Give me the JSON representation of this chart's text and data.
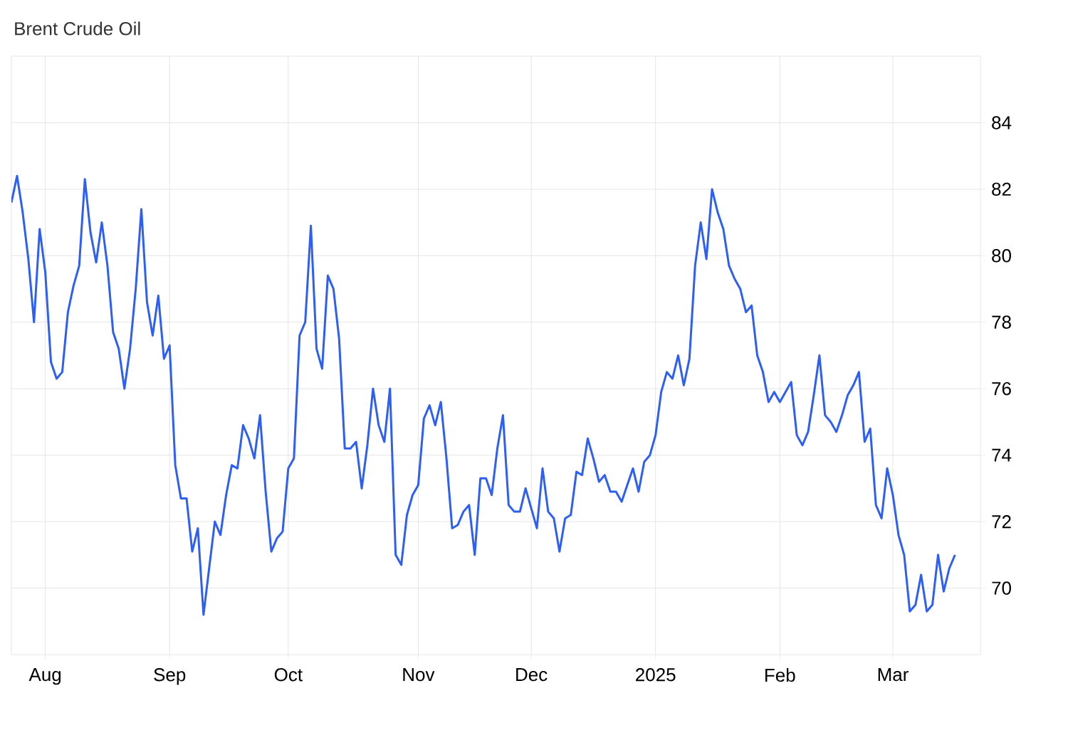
{
  "chart_data": {
    "type": "line",
    "title": "Brent Crude Oil",
    "grid": true,
    "ylim": [
      68,
      86
    ],
    "yticks": [
      70,
      72,
      74,
      76,
      78,
      80,
      82,
      84
    ],
    "categories": [
      null,
      null,
      null,
      null,
      null,
      null,
      "Aug",
      null,
      null,
      null,
      null,
      null,
      null,
      null,
      null,
      null,
      null,
      null,
      null,
      null,
      null,
      null,
      null,
      null,
      null,
      null,
      null,
      null,
      "Sep",
      null,
      null,
      null,
      null,
      null,
      null,
      null,
      null,
      null,
      null,
      null,
      null,
      null,
      null,
      null,
      null,
      null,
      null,
      null,
      null,
      "Oct",
      null,
      null,
      null,
      null,
      null,
      null,
      null,
      null,
      null,
      null,
      null,
      null,
      null,
      null,
      null,
      null,
      null,
      null,
      null,
      null,
      null,
      null,
      "Nov",
      null,
      null,
      null,
      null,
      null,
      null,
      null,
      null,
      null,
      null,
      null,
      null,
      null,
      null,
      null,
      null,
      null,
      null,
      null,
      "Dec",
      null,
      null,
      null,
      null,
      null,
      null,
      null,
      null,
      null,
      null,
      null,
      null,
      null,
      null,
      null,
      null,
      null,
      null,
      null,
      null,
      null,
      "2025",
      null,
      null,
      null,
      null,
      null,
      null,
      null,
      null,
      null,
      null,
      null,
      null,
      null,
      null,
      null,
      null,
      null,
      null,
      null,
      null,
      null,
      "Feb",
      null,
      null,
      null,
      null,
      null,
      null,
      null,
      null,
      null,
      null,
      null,
      null,
      null,
      null,
      null,
      null,
      null,
      null,
      null,
      "Mar",
      null,
      null,
      null,
      null,
      null,
      null,
      null,
      null,
      null,
      null,
      null
    ],
    "series": [
      {
        "color": "#2e5ff5",
        "values": [
          81.6,
          82.4,
          81.3,
          79.9,
          78.0,
          80.8,
          79.5,
          76.8,
          76.3,
          76.5,
          78.3,
          79.1,
          79.7,
          82.3,
          80.7,
          79.8,
          81.0,
          79.7,
          77.7,
          77.2,
          76.0,
          77.2,
          79.0,
          81.4,
          78.6,
          77.6,
          78.8,
          76.9,
          77.3,
          73.7,
          72.7,
          72.7,
          71.1,
          71.8,
          69.2,
          70.6,
          72.0,
          71.6,
          72.8,
          73.7,
          73.6,
          74.9,
          74.5,
          73.9,
          75.2,
          72.9,
          71.1,
          71.5,
          71.7,
          73.6,
          73.9,
          77.6,
          78.0,
          80.9,
          77.2,
          76.6,
          79.4,
          79.0,
          77.5,
          74.2,
          74.2,
          74.4,
          73.0,
          74.3,
          76.0,
          74.9,
          74.4,
          76.0,
          71.0,
          70.7,
          72.2,
          72.8,
          73.1,
          75.1,
          75.5,
          74.9,
          75.6,
          73.9,
          71.8,
          71.9,
          72.3,
          72.5,
          71.0,
          73.3,
          73.3,
          72.8,
          74.2,
          75.2,
          72.5,
          72.3,
          72.3,
          73.0,
          72.4,
          71.8,
          73.6,
          72.3,
          72.1,
          71.1,
          72.1,
          72.2,
          73.5,
          73.4,
          74.5,
          73.9,
          73.2,
          73.4,
          72.9,
          72.9,
          72.6,
          73.1,
          73.6,
          72.9,
          73.8,
          74.0,
          74.6,
          75.9,
          76.5,
          76.3,
          77.0,
          76.1,
          76.9,
          79.7,
          81.0,
          79.9,
          82.0,
          81.3,
          80.8,
          79.7,
          79.3,
          79.0,
          78.3,
          78.5,
          77.0,
          76.5,
          75.6,
          75.9,
          75.6,
          75.9,
          76.2,
          74.6,
          74.3,
          74.7,
          75.8,
          77.0,
          75.2,
          75.0,
          74.7,
          75.2,
          75.8,
          76.1,
          76.5,
          74.4,
          74.8,
          72.5,
          72.1,
          73.6,
          72.8,
          71.6,
          71.0,
          69.3,
          69.5,
          70.4,
          69.3,
          69.5,
          71.0,
          69.9,
          70.6,
          71.0
        ]
      }
    ]
  }
}
